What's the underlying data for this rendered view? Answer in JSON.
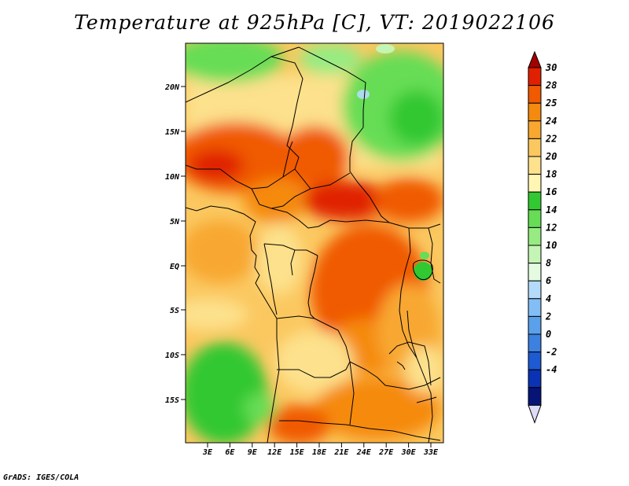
{
  "title": "Temperature at 925hPa [C], VT: 2019022106",
  "credit": "GrADS: IGES/COLA",
  "map": {
    "lat_labels": [
      "20N",
      "15N",
      "10N",
      "5N",
      "EQ",
      "5S",
      "10S",
      "15S"
    ],
    "lon_labels": [
      "3E",
      "6E",
      "9E",
      "12E",
      "15E",
      "18E",
      "21E",
      "24E",
      "27E",
      "30E",
      "33E"
    ]
  },
  "colorbar": {
    "labels": [
      "30",
      "28",
      "25",
      "24",
      "22",
      "20",
      "18",
      "16",
      "14",
      "12",
      "10",
      "8",
      "6",
      "4",
      "2",
      "0",
      "-2",
      "-4"
    ],
    "colors": [
      "#a50000",
      "#e02000",
      "#f05a00",
      "#f58a10",
      "#f8a830",
      "#fbc860",
      "#fde18c",
      "#fff6b4",
      "#32c832",
      "#66dd55",
      "#96ec82",
      "#c4f5b4",
      "#e4fbe0",
      "#b4dcfa",
      "#82bef5",
      "#5aa0eb",
      "#3c80e0",
      "#1e5ad2",
      "#0a32b4",
      "#061478",
      "#dcdcf8"
    ]
  }
}
